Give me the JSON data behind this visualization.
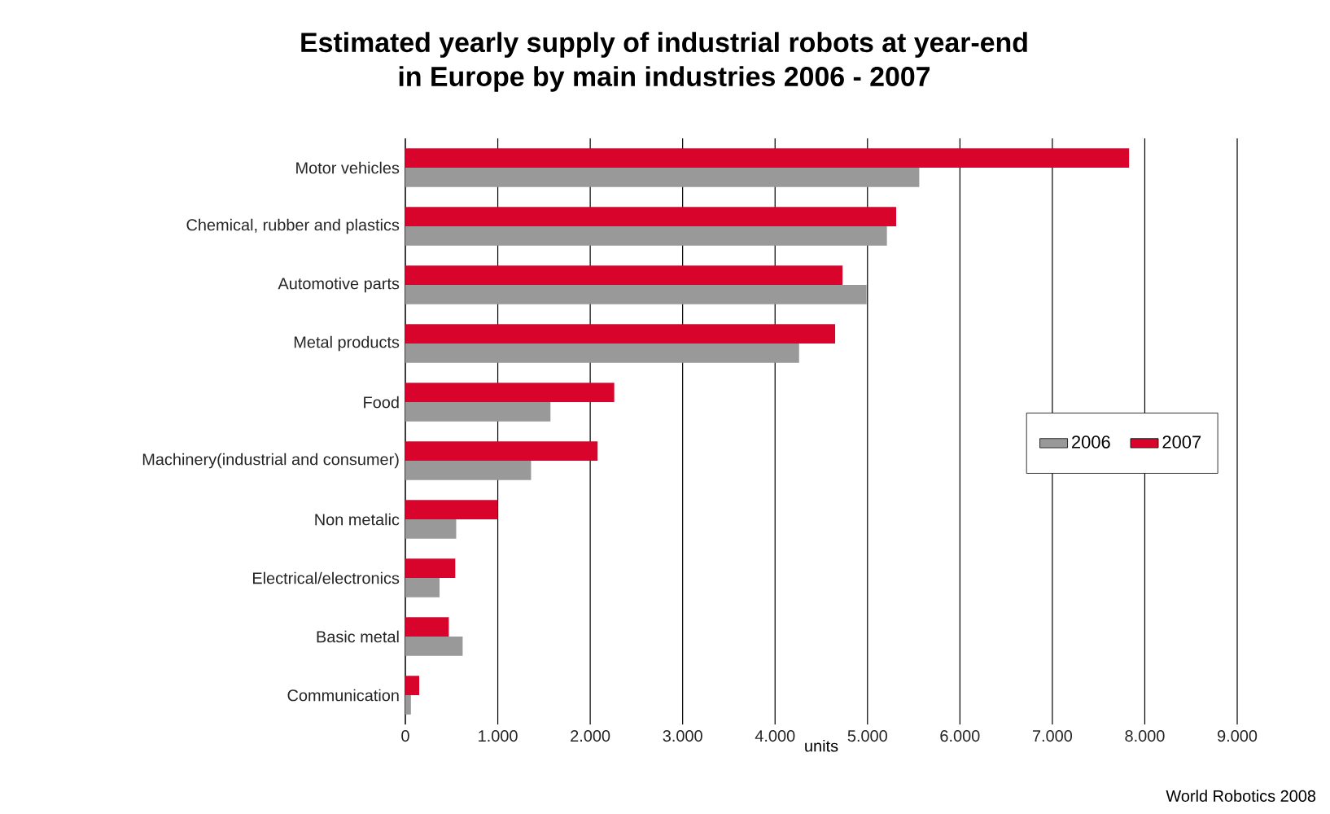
{
  "chart_data": {
    "type": "bar",
    "orientation": "horizontal",
    "title": "Estimated yearly supply of industrial robots at year-end\nin Europe by main industries 2006 - 2007",
    "xlabel": "units",
    "annotations": [
      "World Robotics 2008"
    ],
    "categories": [
      "Motor vehicles",
      "Chemical, rubber and plastics",
      "Automotive parts",
      "Metal products",
      "Food",
      "Machinery(industrial and consumer)",
      "Non metalic",
      "Electrical/electronics",
      "Basic metal",
      "Communication"
    ],
    "series": [
      {
        "name": "2006",
        "color": "#999999",
        "values": [
          5560,
          5210,
          4990,
          4260,
          1570,
          1360,
          550,
          370,
          620,
          60
        ]
      },
      {
        "name": "2007",
        "color": "#d9042b",
        "values": [
          7830,
          5310,
          4730,
          4650,
          2260,
          2080,
          1000,
          540,
          470,
          150
        ]
      }
    ],
    "xlim": [
      0,
      9000
    ],
    "xticks": [
      {
        "value": 0,
        "label": "0"
      },
      {
        "value": 1000,
        "label": "1.000"
      },
      {
        "value": 2000,
        "label": "2.000"
      },
      {
        "value": 3000,
        "label": "3.000"
      },
      {
        "value": 4000,
        "label": "4.000"
      },
      {
        "value": 5000,
        "label": "5.000"
      },
      {
        "value": 6000,
        "label": "6.000"
      },
      {
        "value": 7000,
        "label": "7.000"
      },
      {
        "value": 8000,
        "label": "8.000"
      },
      {
        "value": 9000,
        "label": "9.000"
      }
    ],
    "grid": "x",
    "legend": "right"
  }
}
